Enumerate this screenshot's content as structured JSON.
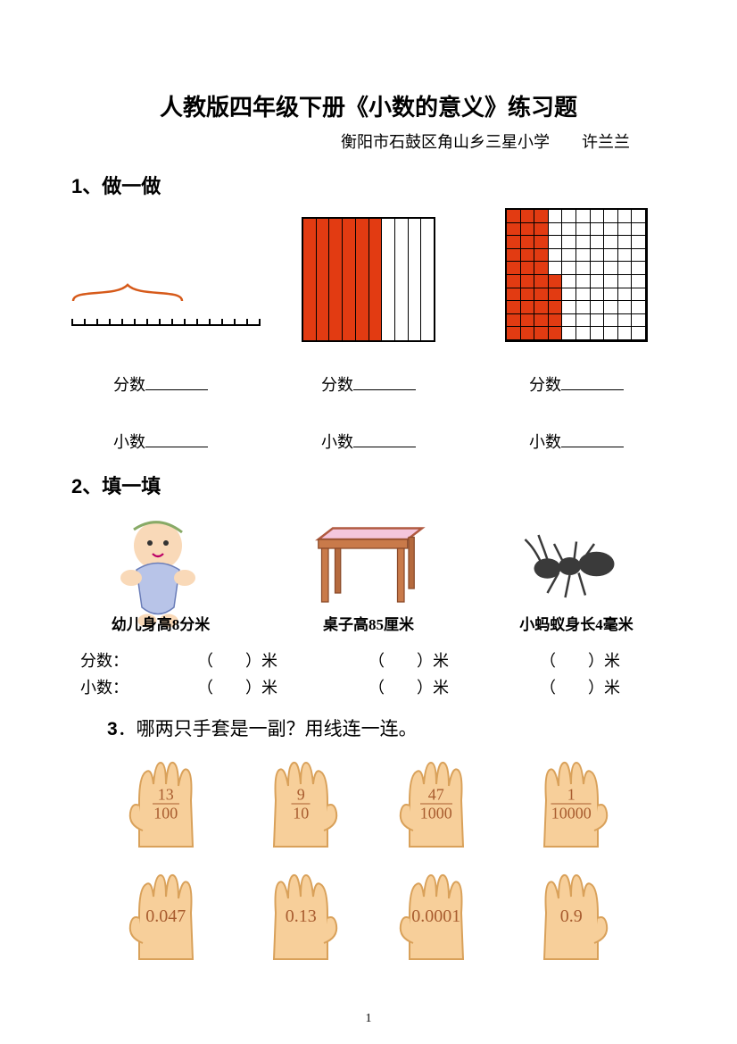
{
  "title": "人教版四年级下册《小数的意义》练习题",
  "subtitle": "衡阳市石鼓区角山乡三星小学　　许兰兰",
  "section1": {
    "heading": "1、做一做",
    "numline": {
      "ticks": 16,
      "brace_span": 10
    },
    "strip10_filled": 6,
    "grid100": {
      "rows": 10,
      "cols": 10,
      "full_cols": 3,
      "extra_in_col4": 5
    },
    "label_fraction": "分数",
    "label_decimal": "小数",
    "accent_color": "#e23b12"
  },
  "section2": {
    "heading": "2、填一填",
    "items": [
      {
        "caption": "幼儿身高8分米"
      },
      {
        "caption": "桌子高85厘米"
      },
      {
        "caption": "小蚂蚁身长4毫米"
      }
    ],
    "row_fraction": "分数：",
    "row_decimal": "小数：",
    "slot": "（　　）米"
  },
  "section3": {
    "heading_num": "3",
    "heading_text": "．哪两只手套是一副？用线连一连。",
    "gloves_top": [
      {
        "num": "13",
        "den": "100"
      },
      {
        "num": "9",
        "den": "10"
      },
      {
        "num": "47",
        "den": "1000"
      },
      {
        "num": "1",
        "den": "10000"
      }
    ],
    "gloves_bottom": [
      {
        "dec": "0.047"
      },
      {
        "dec": "0.13"
      },
      {
        "dec": "0.0001"
      },
      {
        "dec": "0.9"
      }
    ],
    "glove_fill": "#f7cf9a",
    "glove_stroke": "#d9a15a"
  },
  "page_number": "1"
}
